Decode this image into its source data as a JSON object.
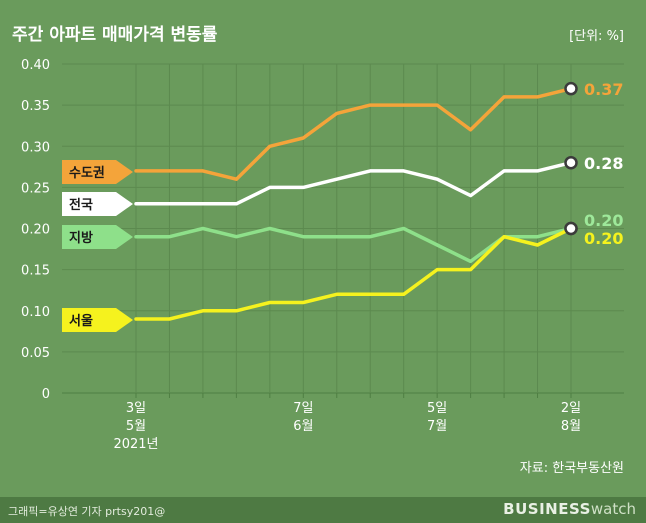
{
  "chart_data": {
    "type": "line",
    "title": "주간 아파트 매매가격 변동률",
    "unit_label": "[단위: %]",
    "source": "자료: 한국부동산원",
    "ylim": [
      0,
      0.4
    ],
    "y_ticks": [
      "0",
      "0.05",
      "0.10",
      "0.15",
      "0.20",
      "0.25",
      "0.30",
      "0.35",
      "0.40"
    ],
    "x_tick_labels": [
      {
        "index": 0,
        "lines": [
          "3일",
          "5월",
          "2021년"
        ]
      },
      {
        "index": 5,
        "lines": [
          "7일",
          "6월"
        ]
      },
      {
        "index": 9,
        "lines": [
          "5일",
          "7월"
        ]
      },
      {
        "index": 13,
        "lines": [
          "2일",
          "8월"
        ]
      }
    ],
    "num_points": 14,
    "grid": true,
    "series": [
      {
        "name": "수도권",
        "color": "#f4a43a",
        "end_label": "0.37",
        "label_color": "#f4a43a",
        "values": [
          0.27,
          0.27,
          0.27,
          0.26,
          0.3,
          0.31,
          0.34,
          0.35,
          0.35,
          0.35,
          0.32,
          0.36,
          0.36,
          0.37
        ]
      },
      {
        "name": "전국",
        "color": "#ffffff",
        "end_label": "0.28",
        "label_color": "#ffffff",
        "values": [
          0.23,
          0.23,
          0.23,
          0.23,
          0.25,
          0.25,
          0.26,
          0.27,
          0.27,
          0.26,
          0.24,
          0.27,
          0.27,
          0.28
        ]
      },
      {
        "name": "지방",
        "color": "#8ee08a",
        "end_label": "0.20",
        "label_color": "#9ee89a",
        "values": [
          0.19,
          0.19,
          0.2,
          0.19,
          0.2,
          0.19,
          0.19,
          0.19,
          0.2,
          0.18,
          0.16,
          0.19,
          0.19,
          0.2
        ]
      },
      {
        "name": "서울",
        "color": "#f5f21e",
        "end_label": "0.20",
        "label_color": "#f5f21e",
        "values": [
          0.09,
          0.09,
          0.1,
          0.1,
          0.11,
          0.11,
          0.12,
          0.12,
          0.12,
          0.15,
          0.15,
          0.19,
          0.18,
          0.2
        ]
      }
    ]
  },
  "footer": {
    "credit": "그래픽=유상연 기자 prtsy201@",
    "logo_bold": "BUSINESS",
    "logo_light": "watch"
  }
}
